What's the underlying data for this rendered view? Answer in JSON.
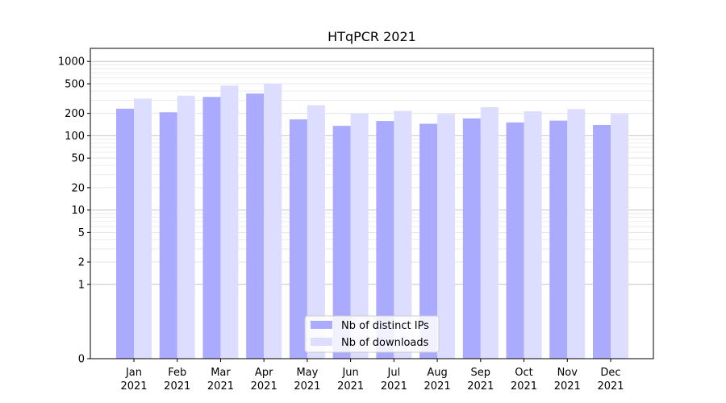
{
  "chart_data": {
    "type": "bar",
    "title": "HTqPCR 2021",
    "xlabel": "",
    "ylabel": "",
    "categories": [
      [
        "Jan",
        "2021"
      ],
      [
        "Feb",
        "2021"
      ],
      [
        "Mar",
        "2021"
      ],
      [
        "Apr",
        "2021"
      ],
      [
        "May",
        "2021"
      ],
      [
        "Jun",
        "2021"
      ],
      [
        "Jul",
        "2021"
      ],
      [
        "Aug",
        "2021"
      ],
      [
        "Sep",
        "2021"
      ],
      [
        "Oct",
        "2021"
      ],
      [
        "Nov",
        "2021"
      ],
      [
        "Dec",
        "2021"
      ]
    ],
    "series": [
      {
        "name": "Nb of distinct IPs",
        "color": "#aaaaff",
        "values": [
          231,
          207,
          333,
          370,
          166,
          136,
          158,
          145,
          171,
          151,
          160,
          140
        ]
      },
      {
        "name": "Nb of downloads",
        "color": "#ddddff",
        "values": [
          316,
          346,
          474,
          505,
          258,
          199,
          216,
          197,
          242,
          213,
          229,
          197
        ]
      }
    ],
    "yscale": "symlog",
    "ylim": [
      0,
      1500
    ],
    "yticks": [
      0,
      1,
      2,
      5,
      10,
      20,
      50,
      100,
      200,
      500,
      1000
    ],
    "ytick_labels": [
      "0",
      "1",
      "2",
      "5",
      "10",
      "20",
      "50",
      "100",
      "200",
      "500",
      "1000"
    ],
    "grid": true,
    "legend_position": "bottom-center"
  }
}
